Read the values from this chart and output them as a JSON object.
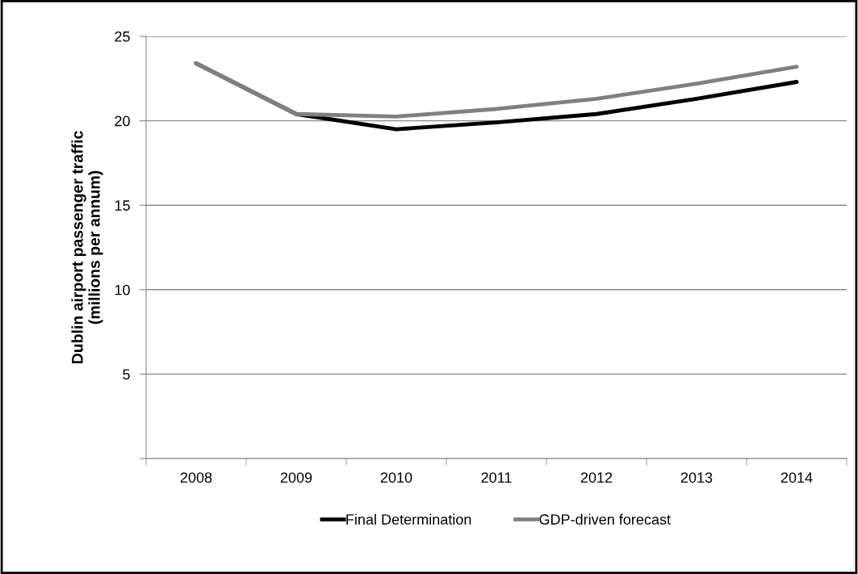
{
  "chart_data": {
    "type": "line",
    "ylabel": "Dublin airport passenger traffic\n(millions per annum)",
    "categories": [
      "2008",
      "2009",
      "2010",
      "2011",
      "2012",
      "2013",
      "2014"
    ],
    "series": [
      {
        "name": "Final Determination",
        "color": "#000000",
        "values": [
          23.4,
          20.4,
          19.5,
          19.9,
          20.4,
          21.3,
          22.3
        ]
      },
      {
        "name": "GDP-driven forecast",
        "color": "#808080",
        "values": [
          23.4,
          20.4,
          20.25,
          20.7,
          21.3,
          22.2,
          23.2
        ]
      }
    ],
    "ylim": [
      0,
      25
    ],
    "yticks": [
      {
        "value": 0,
        "label": null
      },
      5,
      10,
      15,
      20,
      25
    ],
    "grid": "y",
    "legend": "bottom",
    "marker": "none",
    "line_style": "solid"
  }
}
